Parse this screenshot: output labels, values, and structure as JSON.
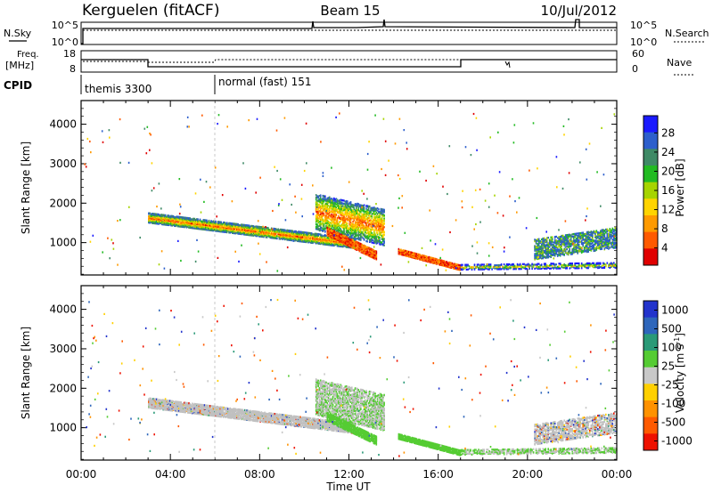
{
  "header": {
    "station": "Kerguelen (fitACF)",
    "beam": "Beam 15",
    "date": "10/Jul/2012"
  },
  "strip_labels": {
    "nsky": "N.Sky",
    "nsky_top": "10^5",
    "nsky_bottom": "10^0",
    "nsearch": "N.Search",
    "nsearch_top": "10^5",
    "nsearch_bottom": "10^0",
    "freq": "Freq.",
    "freq_unit": "[MHz]",
    "freq_top": "18",
    "freq_bottom": "8",
    "nave": "Nave",
    "nave_top": "60",
    "nave_bottom": "0",
    "cpid": "CPID",
    "cpid_1": "themis 3300",
    "cpid_2": "normal (fast) 151"
  },
  "colors": {
    "power": [
      "#1a1aff",
      "#2d5fcc",
      "#3f8a66",
      "#22bb22",
      "#a6d400",
      "#ffd400",
      "#ff9a00",
      "#ff5a00",
      "#e00000"
    ],
    "velocity": [
      "#2233cc",
      "#2e66bb",
      "#2a9a77",
      "#55cc33",
      "#c8c8c8",
      "#ffd000",
      "#ff9200",
      "#ff5a00",
      "#ee1100"
    ],
    "grey_scatter": "#c0c0c0"
  },
  "chart_data": [
    {
      "type": "heatmap",
      "title": "",
      "ylabel": "Slant Range [km]",
      "xlabel": "",
      "x_range_hours": [
        0,
        24
      ],
      "ylim": [
        180,
        4600
      ],
      "y_ticks": [
        1000,
        2000,
        3000,
        4000
      ],
      "colorbar": {
        "label": "Power [dB]",
        "ticks": [
          "28",
          "24",
          "20",
          "16",
          "12",
          "8",
          "4"
        ],
        "range": [
          0,
          30
        ]
      },
      "features": [
        {
          "t0": 3.0,
          "t1": 12.5,
          "r0": 1650,
          "r1": 950,
          "level": "12-24",
          "note": "main echo band"
        },
        {
          "t0": 10.5,
          "t1": 13.6,
          "r0": 1900,
          "r1": 850,
          "level": "20-28"
        },
        {
          "t0": 14.2,
          "t1": 17.0,
          "r0": 800,
          "r1": 350,
          "level": "20-28"
        },
        {
          "t0": 17.0,
          "t1": 24.0,
          "r0": 400,
          "r1": 450,
          "level": "4-20"
        },
        {
          "t0": 20.3,
          "t1": 24.0,
          "r0": 700,
          "r1": 1350,
          "level": "4-20",
          "note": "patchy band"
        }
      ]
    },
    {
      "type": "heatmap",
      "title": "",
      "ylabel": "Slant Range [km]",
      "xlabel": "Time UT",
      "x_ticks": [
        "00:00",
        "04:00",
        "08:00",
        "12:00",
        "16:00",
        "20:00",
        "00:00"
      ],
      "x_range_hours": [
        0,
        24
      ],
      "ylim": [
        180,
        4600
      ],
      "y_ticks": [
        1000,
        2000,
        3000,
        4000
      ],
      "colorbar": {
        "label": "Velocity [m s",
        "label_sup": "-1",
        "label_end": "]",
        "ticks": [
          "1000",
          "500",
          "100",
          "25",
          "-25",
          "-100",
          "-500",
          "-1000"
        ],
        "range": [
          -1000,
          1000
        ]
      },
      "features": [
        {
          "t0": 3.0,
          "t1": 12.5,
          "r0": 1650,
          "r1": 950,
          "level": "grey ground scatter"
        },
        {
          "t0": 10.5,
          "t1": 13.6,
          "r0": 700,
          "r1": 500,
          "level": "50-150 green"
        },
        {
          "t0": 14.2,
          "t1": 17.0,
          "r0": 800,
          "r1": 350,
          "level": "50-150 green"
        },
        {
          "t0": 20.3,
          "t1": 24.0,
          "r0": 1000,
          "r1": 1300,
          "level": "grey / mixed"
        }
      ]
    }
  ]
}
